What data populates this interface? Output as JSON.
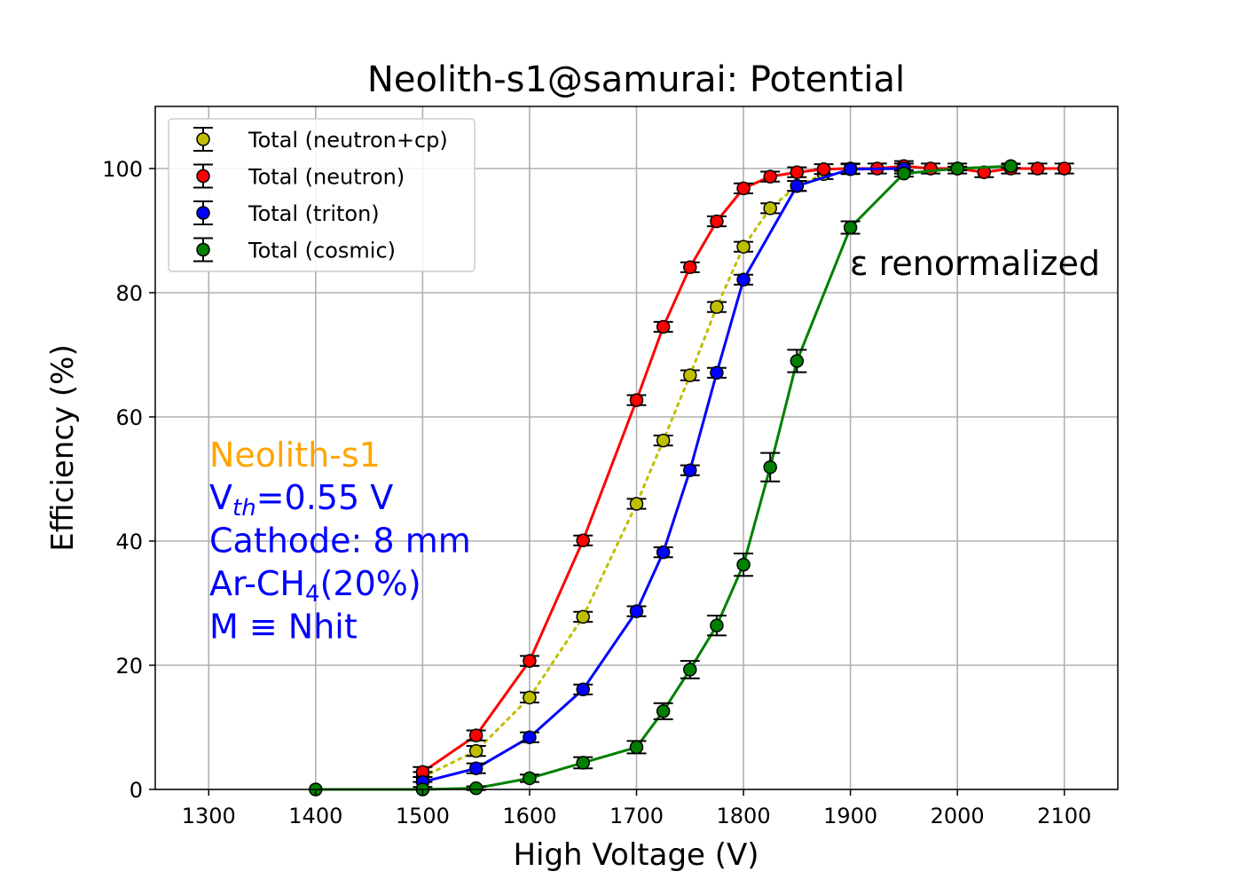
{
  "chart_data": {
    "type": "scatter",
    "title": "Neolith-s1@samurai: Potential",
    "xlabel": "High Voltage (V)",
    "ylabel": "Efficiency (%)",
    "xlim": [
      1250,
      2150
    ],
    "ylim": [
      0,
      110
    ],
    "xticks": [
      1300,
      1400,
      1500,
      1600,
      1700,
      1800,
      1900,
      2000,
      2100
    ],
    "yticks": [
      0,
      20,
      40,
      60,
      80,
      100
    ],
    "grid": true,
    "legend_position": "top-left",
    "series": [
      {
        "name": "Total (neutron+cp)",
        "color": "#bfbf00",
        "line_style": "dotted",
        "points": [
          {
            "x": 1500,
            "y": 2.0,
            "err": 0.8
          },
          {
            "x": 1550,
            "y": 6.2,
            "err": 0.8
          },
          {
            "x": 1600,
            "y": 14.8,
            "err": 0.8
          },
          {
            "x": 1650,
            "y": 27.8,
            "err": 0.8
          },
          {
            "x": 1700,
            "y": 46.0,
            "err": 0.8
          },
          {
            "x": 1725,
            "y": 56.2,
            "err": 0.8
          },
          {
            "x": 1750,
            "y": 66.7,
            "err": 0.8
          },
          {
            "x": 1775,
            "y": 77.7,
            "err": 0.8
          },
          {
            "x": 1800,
            "y": 87.4,
            "err": 0.8
          },
          {
            "x": 1825,
            "y": 93.6,
            "err": 0.8
          },
          {
            "x": 1850,
            "y": 97.2,
            "err": 0.8
          },
          {
            "x": 1875,
            "y": 99.1,
            "err": 0.8
          }
        ]
      },
      {
        "name": "Total (neutron)",
        "color": "#ff0000",
        "line_style": "solid",
        "points": [
          {
            "x": 1500,
            "y": 2.8,
            "err": 0.8
          },
          {
            "x": 1550,
            "y": 8.7,
            "err": 0.8
          },
          {
            "x": 1600,
            "y": 20.7,
            "err": 0.8
          },
          {
            "x": 1650,
            "y": 40.1,
            "err": 0.8
          },
          {
            "x": 1700,
            "y": 62.7,
            "err": 0.8
          },
          {
            "x": 1725,
            "y": 74.5,
            "err": 0.8
          },
          {
            "x": 1750,
            "y": 84.1,
            "err": 0.8
          },
          {
            "x": 1775,
            "y": 91.5,
            "err": 0.8
          },
          {
            "x": 1800,
            "y": 96.8,
            "err": 0.8
          },
          {
            "x": 1825,
            "y": 98.7,
            "err": 0.8
          },
          {
            "x": 1850,
            "y": 99.4,
            "err": 0.8
          },
          {
            "x": 1875,
            "y": 99.9,
            "err": 0.8
          },
          {
            "x": 1900,
            "y": 100.0,
            "err": 0.8
          },
          {
            "x": 1925,
            "y": 100.0,
            "err": 0.8
          },
          {
            "x": 1950,
            "y": 100.4,
            "err": 0.8
          },
          {
            "x": 1975,
            "y": 100.0,
            "err": 0.8
          },
          {
            "x": 2000,
            "y": 100.0,
            "err": 0.8
          },
          {
            "x": 2025,
            "y": 99.4,
            "err": 0.8
          },
          {
            "x": 2050,
            "y": 100.0,
            "err": 0.8
          },
          {
            "x": 2075,
            "y": 100.0,
            "err": 0.8
          },
          {
            "x": 2100,
            "y": 100.0,
            "err": 0.8
          }
        ]
      },
      {
        "name": "Total (triton)",
        "color": "#0000ff",
        "line_style": "solid",
        "points": [
          {
            "x": 1500,
            "y": 1.2,
            "err": 0.8
          },
          {
            "x": 1550,
            "y": 3.4,
            "err": 0.8
          },
          {
            "x": 1600,
            "y": 8.4,
            "err": 0.8
          },
          {
            "x": 1650,
            "y": 16.1,
            "err": 0.8
          },
          {
            "x": 1700,
            "y": 28.7,
            "err": 0.8
          },
          {
            "x": 1725,
            "y": 38.2,
            "err": 0.8
          },
          {
            "x": 1750,
            "y": 51.4,
            "err": 0.8
          },
          {
            "x": 1775,
            "y": 67.1,
            "err": 0.8
          },
          {
            "x": 1800,
            "y": 82.1,
            "err": 0.8
          },
          {
            "x": 1850,
            "y": 97.2,
            "err": 0.8
          },
          {
            "x": 1900,
            "y": 99.9,
            "err": 0.8
          },
          {
            "x": 1950,
            "y": 100.0,
            "err": 0.8
          }
        ]
      },
      {
        "name": "Total (cosmic)",
        "color": "#008000",
        "line_style": "solid",
        "points": [
          {
            "x": 1400,
            "y": 0.0,
            "err": 0.0
          },
          {
            "x": 1500,
            "y": 0.0,
            "err": 0.0
          },
          {
            "x": 1550,
            "y": 0.2,
            "err": 0.3
          },
          {
            "x": 1600,
            "y": 1.8,
            "err": 0.6
          },
          {
            "x": 1650,
            "y": 4.3,
            "err": 0.9
          },
          {
            "x": 1700,
            "y": 6.8,
            "err": 1.0
          },
          {
            "x": 1725,
            "y": 12.6,
            "err": 1.3
          },
          {
            "x": 1750,
            "y": 19.3,
            "err": 1.4
          },
          {
            "x": 1775,
            "y": 26.4,
            "err": 1.6
          },
          {
            "x": 1800,
            "y": 36.2,
            "err": 1.8
          },
          {
            "x": 1825,
            "y": 51.9,
            "err": 2.3
          },
          {
            "x": 1850,
            "y": 69.0,
            "err": 1.8
          },
          {
            "x": 1900,
            "y": 90.5,
            "err": 1.0
          },
          {
            "x": 1950,
            "y": 99.2,
            "err": 0.5
          },
          {
            "x": 2000,
            "y": 100.0,
            "err": 0.3
          },
          {
            "x": 2050,
            "y": 100.4,
            "err": 0.3
          }
        ]
      }
    ],
    "annotations": [
      {
        "lines": [
          {
            "text": "Neolith-s1",
            "color": "#ffa500"
          }
        ]
      },
      {
        "lines": [
          {
            "text": "V",
            "color": "#0000ff",
            "sub": "th",
            "after": "=0.55 V"
          },
          {
            "text": "Cathode: 8 mm",
            "color": "#0000ff"
          },
          {
            "text": "Ar-CH",
            "color": "#0000ff",
            "sub": "4",
            "after": "(20%)"
          },
          {
            "text": "M ≡ Nhit",
            "color": "#0000ff"
          }
        ]
      },
      {
        "lines": [
          {
            "text": "ε renormalized",
            "color": "#000000"
          }
        ]
      }
    ]
  }
}
